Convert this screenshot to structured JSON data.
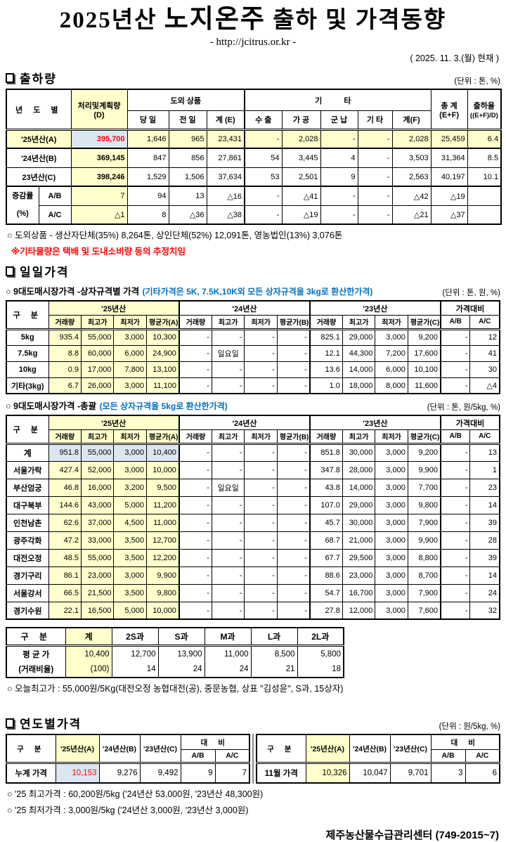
{
  "colors": {
    "highlight_yellow": "#FFFFCC",
    "highlight_blue": "#DCE6F1",
    "alert_red": "#FF0000",
    "note_blue": "#0070C0",
    "divider_gray": "#888888"
  },
  "header": {
    "title_prefix": "2025년산",
    "title_emphasis": "노지온주",
    "title_suffix": "출하 및 가격동향",
    "url": "- http://jcitrus.or.kr -",
    "date": "( 2025.  11. 3.(월) 현재 )"
  },
  "shipment": {
    "section_title": "출하량",
    "unit": "(단위 : 톤, %)",
    "head": {
      "year": "년 도 별",
      "plan": "처리및계획량",
      "plan2": "(D)",
      "out_group": "도외 상품",
      "day": "당 일",
      "prev": "전 일",
      "sum_e": "계 (E)",
      "etc_group": "기 타",
      "export": "수 출",
      "process": "가 공",
      "military": "군 납",
      "etc": "기 타",
      "sum_f": "계(F)",
      "total": "총 계",
      "total2": "(E+F)",
      "rate": "출하율",
      "rate2": "((E+F)/D)"
    },
    "rows": {
      "y25": [
        "'25년산(A)",
        "395,700",
        "1,646",
        "965",
        "23,431",
        "-",
        "2,028",
        "-",
        "-",
        "2,028",
        "25,459",
        "6.4"
      ],
      "y24": [
        "'24년산(B)",
        "369,145",
        "847",
        "856",
        "27,861",
        "54",
        "3,445",
        "4",
        "-",
        "3,503",
        "31,364",
        "8.5"
      ],
      "y23": [
        "23년산(C)",
        "398,246",
        "1,529",
        "1,506",
        "37,634",
        "53",
        "2,501",
        "9",
        "-",
        "2,563",
        "40,197",
        "10.1"
      ],
      "rate_label1": "증감률",
      "rate_label2": "(%)",
      "ab": [
        "A/B",
        "7",
        "94",
        "13",
        "△16",
        "-",
        "△41",
        "-",
        "-",
        "△42",
        "△19",
        ""
      ],
      "ac": [
        "A/C",
        "△1",
        "8",
        "△36",
        "△38",
        "-",
        "△19",
        "-",
        "-",
        "△21",
        "△37",
        ""
      ]
    },
    "note1": "○ 도외상품 - 생산자단체(35%) 8,264톤, 상인단체(52%) 12,091톤, 영농법인(13%) 3,076톤",
    "note2": "※기타물량은 택배 및 도내소비량 등의 추정치임"
  },
  "daily": {
    "section_title": "일일가격",
    "sub1_label": "○ 9대도매시장가격 -상자규격별 가격",
    "sub1_hint": "(기타가격은 5K, 7.5K,10K외 모든 상자규격을 3kg로 환산한가격)",
    "sub1_unit": "(단위 : 톤, 원, %)",
    "sub2_label": "○ 9대도매시장가격 -총괄",
    "sub2_hint": "(모든 상자규격을 5kg로 환산한가격)",
    "sub2_unit": "(단위 : 톤, 원/5kg, %)",
    "head": {
      "gubun": "구 분",
      "g25": "'25년산",
      "g24": "'24년산",
      "g23": "'23년산",
      "gcmp": "가격대비",
      "vol": "거래량",
      "high": "최고가",
      "low": "최저가",
      "avg_a": "평균가(A)",
      "avg_b": "평균가(B)",
      "avg_c": "평균가(C)",
      "ab": "A/B",
      "ac": "A/C"
    },
    "box_rows": [
      [
        "5kg",
        "935.4",
        "55,000",
        "3,000",
        "10,300",
        "-",
        "-",
        "-",
        "-",
        "825.1",
        "29,000",
        "3,000",
        "9,200",
        "-",
        "12"
      ],
      [
        "7.5kg",
        "8.8",
        "60,000",
        "6,000",
        "24,900",
        "-",
        "일요일",
        "-",
        "-",
        "12.1",
        "44,300",
        "7,200",
        "17,600",
        "-",
        "41"
      ],
      [
        "10kg",
        "0.9",
        "17,000",
        "7,800",
        "13,100",
        "-",
        "-",
        "-",
        "-",
        "13.6",
        "14,000",
        "6,000",
        "10,100",
        "-",
        "30"
      ],
      [
        "기타(3kg)",
        "6.7",
        "26,000",
        "3,000",
        "11,100",
        "-",
        "-",
        "-",
        "-",
        "1.0",
        "18,000",
        "8,000",
        "11,600",
        "-",
        "△4"
      ]
    ],
    "total_rows": [
      [
        "계",
        "951.8",
        "55,000",
        "3,000",
        "10,400",
        "-",
        "-",
        "-",
        "-",
        "851.8",
        "30,000",
        "3,000",
        "9,200",
        "-",
        "13"
      ],
      [
        "서울가락",
        "427.4",
        "52,000",
        "3,000",
        "10,000",
        "-",
        "-",
        "-",
        "-",
        "347.8",
        "28,000",
        "3,000",
        "9,900",
        "-",
        "1"
      ],
      [
        "부산엄궁",
        "46.8",
        "16,000",
        "3,200",
        "9,500",
        "-",
        "일요일",
        "-",
        "-",
        "43.8",
        "14,000",
        "3,000",
        "7,700",
        "-",
        "23"
      ],
      [
        "대구북부",
        "144.6",
        "43,000",
        "5,000",
        "11,200",
        "-",
        "-",
        "-",
        "-",
        "107.0",
        "29,000",
        "3,000",
        "9,800",
        "-",
        "14"
      ],
      [
        "인천남촌",
        "62.6",
        "37,000",
        "4,500",
        "11,000",
        "-",
        "-",
        "-",
        "-",
        "45.7",
        "30,000",
        "3,000",
        "7,900",
        "-",
        "39"
      ],
      [
        "광주각화",
        "47.2",
        "33,000",
        "3,500",
        "12,700",
        "-",
        "-",
        "-",
        "-",
        "68.7",
        "21,000",
        "3,000",
        "9,900",
        "-",
        "28"
      ],
      [
        "대전오정",
        "48.5",
        "55,000",
        "3,500",
        "12,200",
        "-",
        "-",
        "-",
        "-",
        "67.7",
        "29,500",
        "3,000",
        "8,800",
        "-",
        "39"
      ],
      [
        "경기구리",
        "86.1",
        "23,000",
        "3,000",
        "9,900",
        "-",
        "-",
        "-",
        "-",
        "88.6",
        "23,000",
        "3,000",
        "8,700",
        "-",
        "14"
      ],
      [
        "서울강서",
        "66.5",
        "21,500",
        "3,500",
        "9,800",
        "-",
        "-",
        "-",
        "-",
        "54.7",
        "16,700",
        "3,000",
        "7,900",
        "-",
        "24"
      ],
      [
        "경기수원",
        "22.1",
        "16,500",
        "5,000",
        "10,000",
        "-",
        "-",
        "-",
        "-",
        "27.8",
        "12,000",
        "3,000",
        "7,600",
        "-",
        "32"
      ]
    ]
  },
  "size": {
    "headers": [
      "구 분",
      "계",
      "2S과",
      "S과",
      "M과",
      "L과",
      "2L과"
    ],
    "row1_label": "평 균 가",
    "row1": [
      "10,400",
      "12,700",
      "13,900",
      "11,000",
      "8,500",
      "5,800"
    ],
    "row2_label": "(거래비율)",
    "row2": [
      "(100)",
      "14",
      "24",
      "24",
      "21",
      "18"
    ],
    "note": "○ 오늘최고가 : 55,000원/5Kg(대전오정 농협대전(공), 중문농협, 상표 \"김성윤\", S과, 15상자)"
  },
  "yearly": {
    "section_title": "연도별가격",
    "unit": "(단위 : 원/5kg, %)",
    "head": {
      "gubun": "구 분",
      "y25": "'25년산(A)",
      "y24": "'24년산(B)",
      "y23": "'23년산(C)",
      "cmp": "대 비",
      "ab": "A/B",
      "ac": "A/C"
    },
    "left_row": [
      "누계 가격",
      "10,153",
      "9,276",
      "9,492",
      "9",
      "7"
    ],
    "right_row": [
      "11월 가격",
      "10,326",
      "10,047",
      "9,701",
      "3",
      "6"
    ],
    "note1": "○ '25 최고가격 : 60,200원/5kg ('24년산 53,000원, '23년산 48,300원)",
    "note2": "○ '25 최저가격 :  3,000원/5kg ('24년산  3,000원, '23년산  3,000원)"
  },
  "footer": "제주농산물수급관리센터 (749-2015~7)"
}
